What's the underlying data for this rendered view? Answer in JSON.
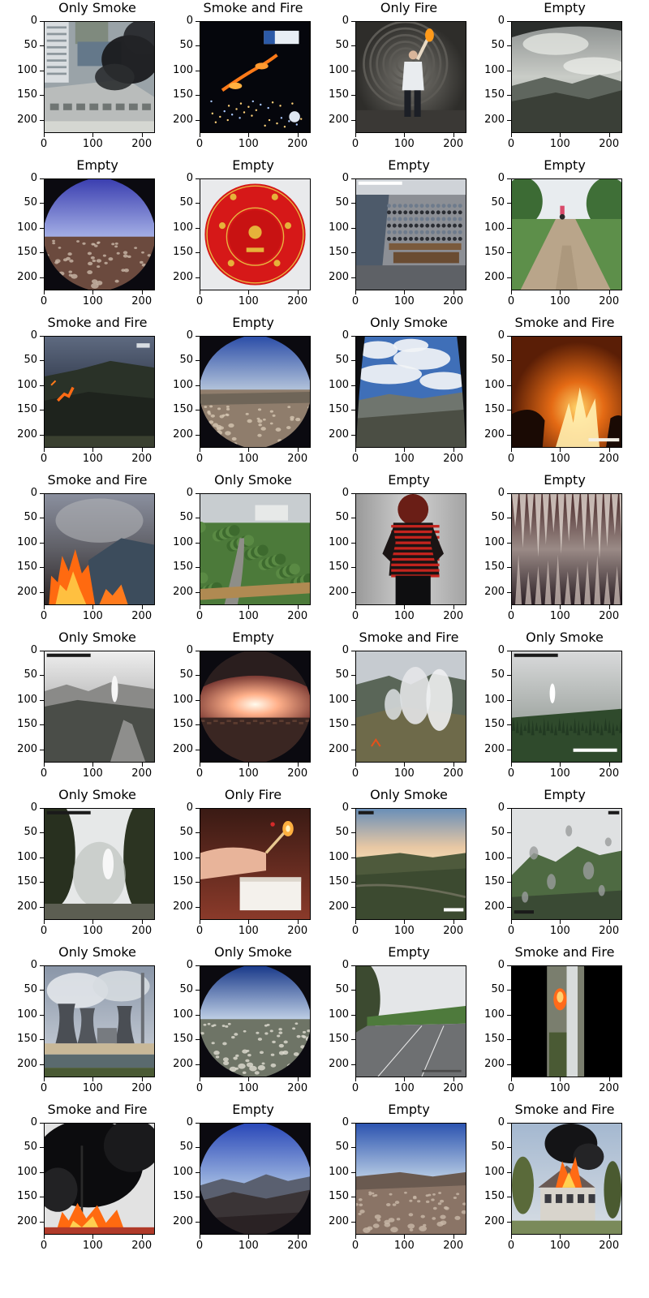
{
  "panels": [
    {
      "title": "Only Smoke",
      "scene": "building rooftop with black smoke"
    },
    {
      "title": "Smoke and Fire",
      "scene": "night hillside fire"
    },
    {
      "title": "Only Fire",
      "scene": "man holding torch"
    },
    {
      "title": "Empty",
      "scene": "cloudy mountain view"
    },
    {
      "title": "Empty",
      "scene": "fisheye rocky plain under blue sky"
    },
    {
      "title": "Empty",
      "scene": "red bowl"
    },
    {
      "title": "Empty",
      "scene": "classroom cctv"
    },
    {
      "title": "Empty",
      "scene": "dirt road with scooter"
    },
    {
      "title": "Smoke and Fire",
      "scene": "night forest fire on slope"
    },
    {
      "title": "Empty",
      "scene": "fisheye rocky valley"
    },
    {
      "title": "Only Smoke",
      "scene": "cloudy sky over hills"
    },
    {
      "title": "Smoke and Fire",
      "scene": "large orange blaze"
    },
    {
      "title": "Smoke and Fire",
      "scene": "wildfire on hillside"
    },
    {
      "title": "Only Smoke",
      "scene": "road through green forest"
    },
    {
      "title": "Empty",
      "scene": "woman in striped sweater"
    },
    {
      "title": "Empty",
      "scene": "cave stalactites"
    },
    {
      "title": "Only Smoke",
      "scene": "hazy valley with plume"
    },
    {
      "title": "Empty",
      "scene": "sunset glow fisheye"
    },
    {
      "title": "Smoke and Fire",
      "scene": "forest smoke plumes"
    },
    {
      "title": "Only Smoke",
      "scene": "foggy forest with plume"
    },
    {
      "title": "Only Smoke",
      "scene": "foggy trees"
    },
    {
      "title": "Only Fire",
      "scene": "match being lit"
    },
    {
      "title": "Only Smoke",
      "scene": "sunset hills"
    },
    {
      "title": "Empty",
      "scene": "rainy lens mountain"
    },
    {
      "title": "Only Smoke",
      "scene": "cooling towers with steam"
    },
    {
      "title": "Only Smoke",
      "scene": "fisheye rocky plain"
    },
    {
      "title": "Empty",
      "scene": "highway with trees"
    },
    {
      "title": "Smoke and Fire",
      "scene": "narrow vertical fire clip"
    },
    {
      "title": "Smoke and Fire",
      "scene": "black smoke over burning site"
    },
    {
      "title": "Empty",
      "scene": "blue sky over mountains"
    },
    {
      "title": "Empty",
      "scene": "rocky hills under blue sky"
    },
    {
      "title": "Smoke and Fire",
      "scene": "burning house"
    }
  ],
  "axes": {
    "y_ticks": [
      "0",
      "50",
      "100",
      "150",
      "200"
    ],
    "x_ticks": [
      "0",
      "100",
      "200"
    ],
    "y_values": [
      0,
      50,
      100,
      150,
      200
    ],
    "x_values": [
      0,
      100,
      200
    ],
    "pixel_extent": 227
  }
}
